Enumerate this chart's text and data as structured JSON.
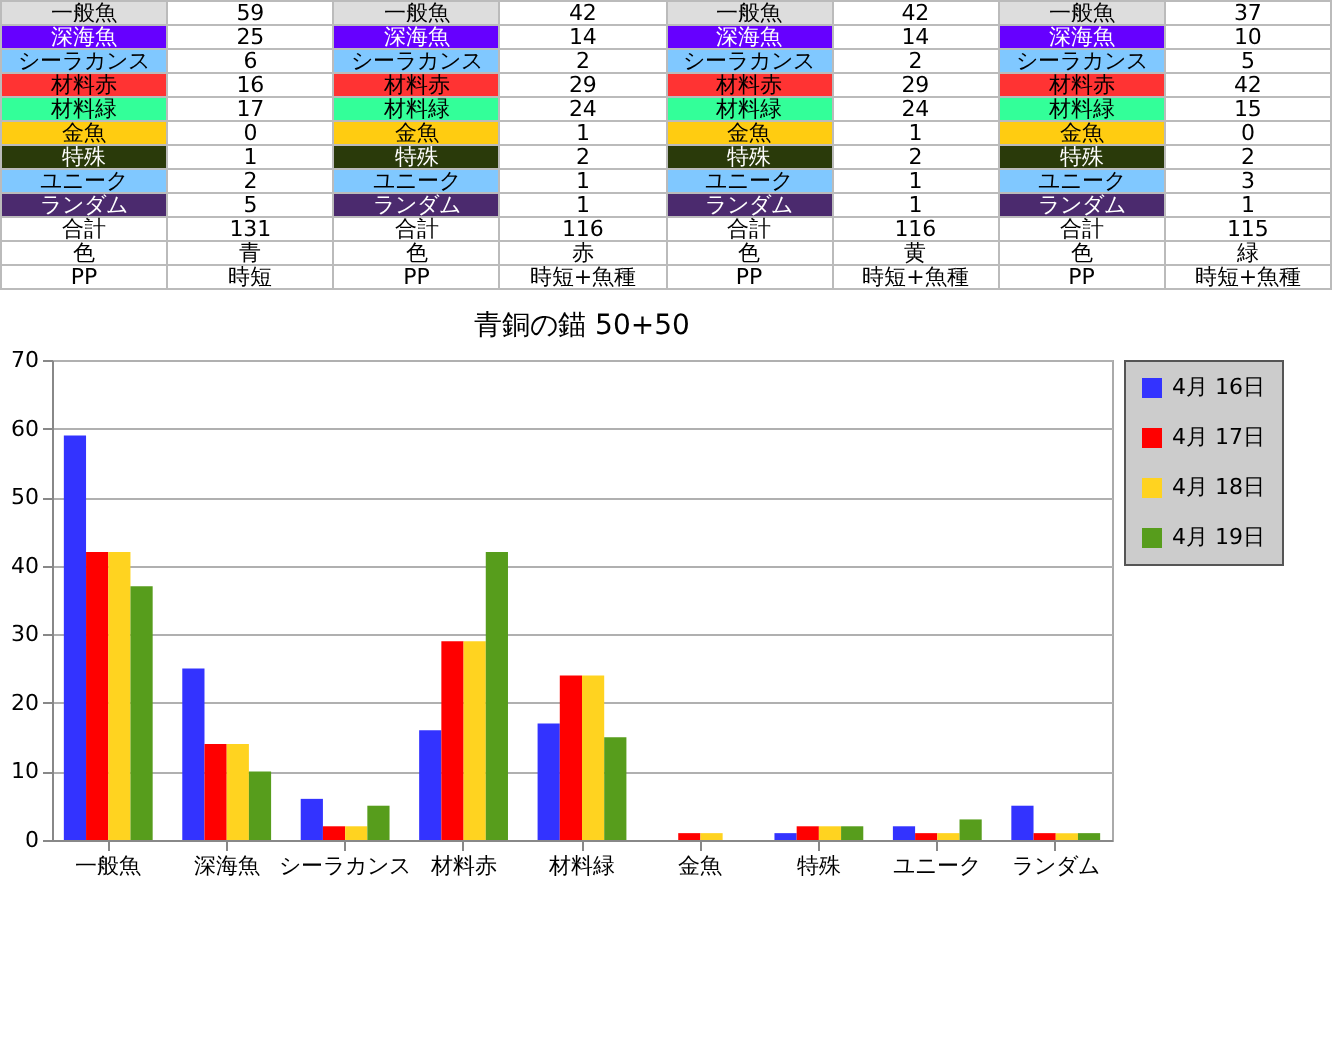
{
  "chart_data": [
    {
      "type": "other",
      "annotations": [
        "一般魚",
        "59",
        "一般魚",
        "42",
        "一般魚",
        "42",
        "一般魚",
        "37",
        "深海魚",
        "25",
        "深海魚",
        "14",
        "深海魚",
        "14",
        "深海魚",
        "10",
        "シーラカンス",
        "6",
        "シーラカンス",
        "2",
        "シーラカンス",
        "2",
        "シーラカンス",
        "5",
        "材料赤",
        "16",
        "材料赤",
        "29",
        "材料赤",
        "29",
        "材料赤",
        "42",
        "材料緑",
        "17",
        "材料緑",
        "24",
        "材料緑",
        "24",
        "材料緑",
        "15",
        "金魚",
        "0",
        "金魚",
        "1",
        "金魚",
        "1",
        "金魚",
        "0",
        "特殊",
        "1",
        "特殊",
        "2",
        "特殊",
        "2",
        "特殊",
        "2",
        "ユニーク",
        "2",
        "ユニーク",
        "1",
        "ユニーク",
        "1",
        "ユニーク",
        "3",
        "ランダム",
        "5",
        "ランダム",
        "1",
        "ランダム",
        "1",
        "ランダム",
        "1",
        "合計",
        "131",
        "合計",
        "116",
        "合計",
        "116",
        "合計",
        "115",
        "色",
        "青",
        "色",
        "赤",
        "色",
        "黄",
        "色",
        "緑",
        "PP",
        "時短",
        "PP",
        "時短+魚種",
        "PP",
        "時短+魚種",
        "PP",
        "時短+魚種"
      ]
    },
    {
      "type": "bar",
      "title": "青銅の錨 50+50",
      "categories": [
        "一般魚",
        "深海魚",
        "シーラカンス",
        "材料赤",
        "材料緑",
        "金魚",
        "特殊",
        "ユニーク",
        "ランダム"
      ],
      "series": [
        {
          "name": "4月 16日",
          "color": "#3333ff",
          "values": [
            59,
            25,
            6,
            16,
            17,
            0,
            1,
            2,
            5
          ]
        },
        {
          "name": "4月 17日",
          "color": "#ff0000",
          "values": [
            42,
            14,
            2,
            29,
            24,
            1,
            2,
            1,
            1
          ]
        },
        {
          "name": "4月 18日",
          "color": "#ffd320",
          "values": [
            42,
            14,
            2,
            29,
            24,
            1,
            2,
            1,
            1
          ]
        },
        {
          "name": "4月 19日",
          "color": "#579d1c",
          "values": [
            37,
            10,
            5,
            42,
            15,
            0,
            2,
            3,
            1
          ]
        }
      ],
      "ylim": [
        0,
        70
      ],
      "yticks": [
        0,
        10,
        20,
        30,
        40,
        50,
        60,
        70
      ],
      "grid": "y",
      "legend": "right"
    }
  ]
}
